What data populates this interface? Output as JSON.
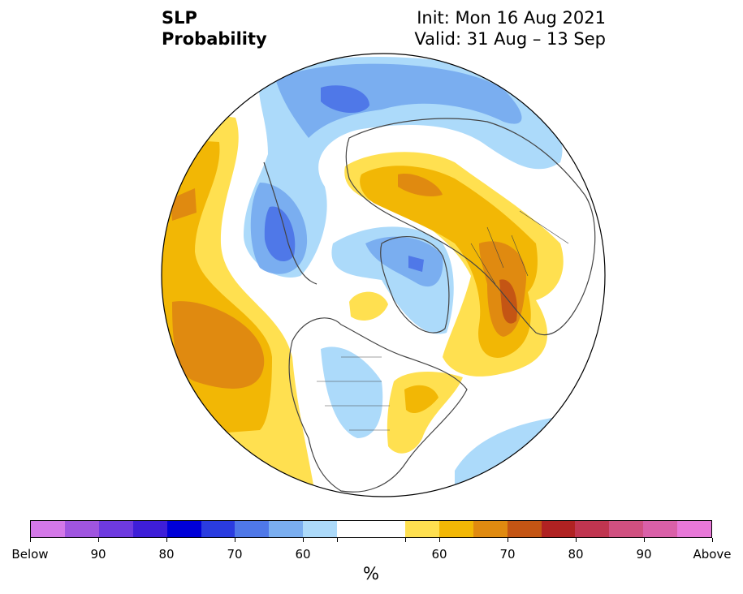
{
  "title": {
    "left_line1": "SLP",
    "left_line2": "Probability",
    "right_line1": "Init: Mon 16 Aug 2021",
    "right_line2": "Valid: 31 Aug – 13 Sep"
  },
  "map": {
    "projection": "north-polar-stereographic",
    "regions": [
      "north-america",
      "greenland",
      "europe",
      "asia",
      "arctic-ocean",
      "north-pacific",
      "north-atlantic"
    ]
  },
  "colorbar": {
    "unit": "%",
    "colors": [
      "#d478e8",
      "#a055e0",
      "#6e3ae0",
      "#3e1ed8",
      "#0000d8",
      "#2a3ce0",
      "#4f78e8",
      "#7aaef0",
      "#acdafa",
      "#ffffff",
      "#ffe050",
      "#f2b705",
      "#e08a10",
      "#c45514",
      "#b02222",
      "#c03550",
      "#d05080",
      "#da60a8",
      "#e878d8"
    ],
    "tick_labels": [
      "Below",
      "90",
      "80",
      "70",
      "60",
      "",
      "",
      "60",
      "70",
      "80",
      "90",
      "Above"
    ]
  }
}
